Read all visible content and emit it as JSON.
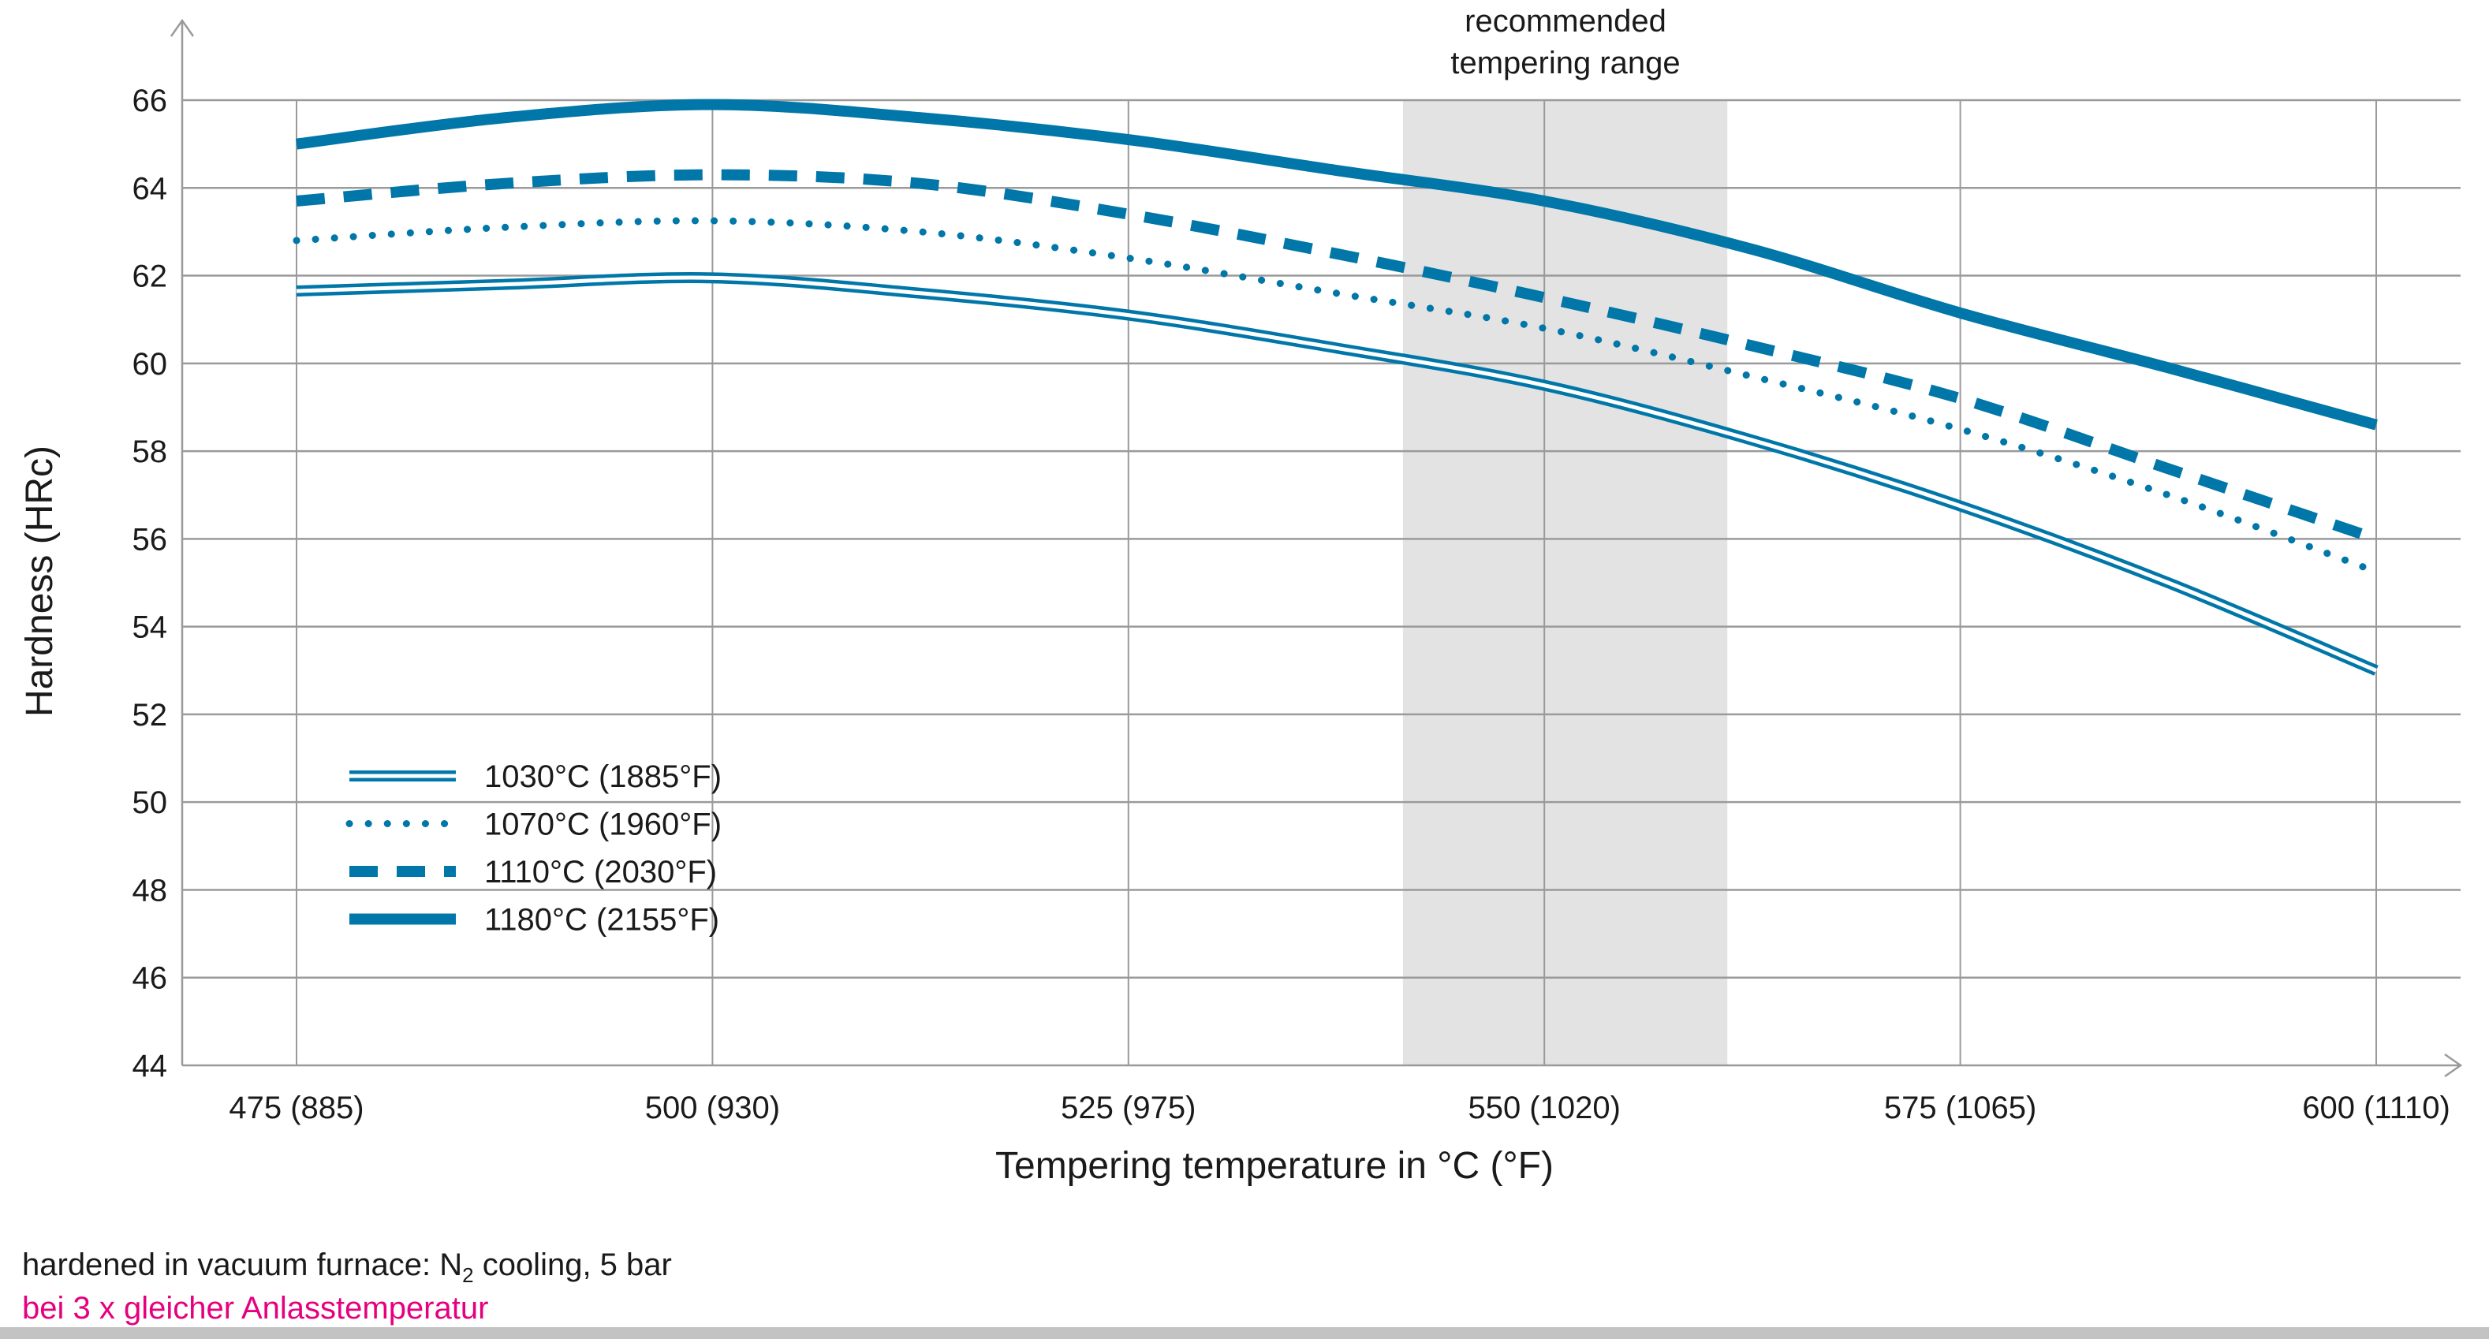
{
  "chart_data": {
    "type": "line",
    "title": "",
    "xlabel": "Tempering temperature in °C (°F)",
    "ylabel": "Hardness (HRc)",
    "xlim": [
      475,
      600
    ],
    "ylim": [
      44,
      66
    ],
    "grid": true,
    "x_ticks": [
      475,
      500,
      525,
      550,
      575,
      600
    ],
    "x_tick_labels": [
      "475 (885)",
      "500 (930)",
      "525 (975)",
      "550 (1020)",
      "575 (1065)",
      "600 (1110)"
    ],
    "y_ticks": [
      44,
      46,
      48,
      50,
      52,
      54,
      56,
      58,
      60,
      62,
      64,
      66
    ],
    "legend_position": "bottom-left",
    "line_color": "#0077a8",
    "shaded_region": {
      "label_line1": "recommended",
      "label_line2": "tempering range",
      "x": [
        541.5,
        561
      ],
      "color": "#e2e3e2"
    },
    "x": [
      475,
      487.5,
      500,
      512.5,
      525,
      537.5,
      550,
      562.5,
      575,
      587.5,
      600
    ],
    "series": [
      {
        "name": "1030°C (1885°F)",
        "style": "double",
        "values": [
          61.65,
          61.8,
          61.95,
          61.6,
          61.1,
          60.35,
          59.5,
          58.25,
          56.75,
          55.0,
          53.0
        ]
      },
      {
        "name": "1070°C (1960°F)",
        "style": "dotted",
        "values": [
          62.8,
          63.1,
          63.25,
          63.0,
          62.4,
          61.6,
          60.8,
          59.7,
          58.5,
          57.0,
          55.25
        ]
      },
      {
        "name": "1110°C (2030°F)",
        "style": "dashed",
        "values": [
          63.7,
          64.1,
          64.3,
          64.1,
          63.4,
          62.5,
          61.5,
          60.4,
          59.2,
          57.6,
          56.0
        ]
      },
      {
        "name": "1180°C (2155°F)",
        "style": "solid",
        "values": [
          65.0,
          65.6,
          65.9,
          65.6,
          65.1,
          64.4,
          63.7,
          62.6,
          61.15,
          59.9,
          58.6
        ]
      }
    ]
  },
  "notes": {
    "line1_before": "hardened in vacuum furnace: N",
    "line1_sub": "2",
    "line1_after": " cooling, 5 bar",
    "line2": "bei 3 x gleicher Anlasstemperatur",
    "line2_color": "#e6007e"
  }
}
